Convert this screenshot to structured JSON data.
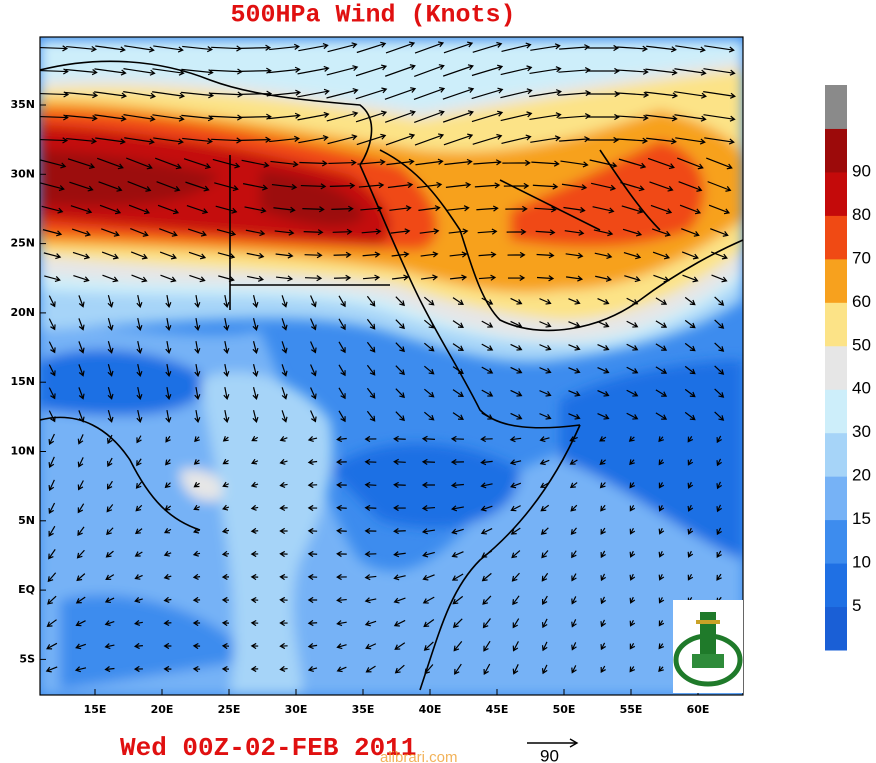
{
  "title": "500HPa Wind (Knots)",
  "latitude_labels": [
    "35N",
    "30N",
    "25N",
    "20N",
    "15N",
    "10N",
    "5N",
    "EQ",
    "5S"
  ],
  "longitude_labels": [
    "15E",
    "20E",
    "25E",
    "30E",
    "35E",
    "40E",
    "45E",
    "50E",
    "55E",
    "60E"
  ],
  "colorbar": {
    "colors": [
      "#1a5fd6",
      "#1f70e4",
      "#3d8cee",
      "#76b2f6",
      "#a6d4f8",
      "#cdeefa",
      "#e6e6e6",
      "#fce387",
      "#f7a11e",
      "#f04a14",
      "#c40a0a",
      "#9c0a0a",
      "#8a8a8a"
    ],
    "labels": [
      "5",
      "10",
      "15",
      "20",
      "30",
      "40",
      "50",
      "60",
      "70",
      "80",
      "90"
    ]
  },
  "timestamp": "Wed 00Z-02-FEB 2011",
  "reference_vector": "90",
  "watermark": "alibrari.com"
}
